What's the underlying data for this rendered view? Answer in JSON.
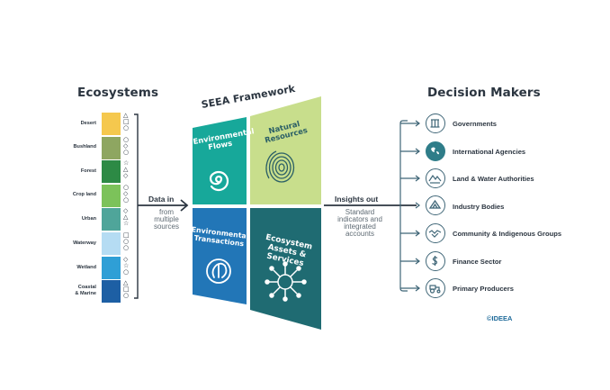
{
  "left": {
    "title": "Ecosystems",
    "items": [
      {
        "label": "Desert",
        "color": "#f5c84e"
      },
      {
        "label": "Bushland",
        "color": "#8ea661"
      },
      {
        "label": "Forest",
        "color": "#2d8a45"
      },
      {
        "label": "Crop land",
        "color": "#7cc25a"
      },
      {
        "label": "Urban",
        "color": "#4fa59a"
      },
      {
        "label": "Waterway",
        "color": "#b5dcf3"
      },
      {
        "label": "Wetland",
        "color": "#2f9fd6"
      },
      {
        "label": "Coastal\n& Marine",
        "color": "#1d5fa4"
      }
    ]
  },
  "flow_in": {
    "title": "Data in",
    "sub": "from\nmultiple\nsources"
  },
  "framework": {
    "title": "SEEA Framework",
    "quadrants": {
      "flows": {
        "label": "Environmental\nFlows",
        "color": "#17a89a",
        "icon": "spiral-icon"
      },
      "resources": {
        "label": "Natural\nResources",
        "color": "#c8de8c",
        "icon": "fingerprint-icon"
      },
      "transactions": {
        "label": "Environmental\nTransactions",
        "color": "#2276b7",
        "icon": "recycle-icon"
      },
      "assets": {
        "label": "Ecosystem\nAssets & Services",
        "color": "#1f6b72",
        "icon": "network-icon"
      }
    }
  },
  "flow_out": {
    "title": "Insights out",
    "sub": "Standard\nindicators and\nintegrated\naccounts"
  },
  "right": {
    "title": "Decision Makers",
    "items": [
      {
        "label": "Governments",
        "icon": "column-icon"
      },
      {
        "label": "International Agencies",
        "icon": "globe-icon"
      },
      {
        "label": "Land & Water Authorities",
        "icon": "landscape-icon"
      },
      {
        "label": "Industry Bodies",
        "icon": "triangle-icon"
      },
      {
        "label": "Community & Indigenous Groups",
        "icon": "handshake-icon"
      },
      {
        "label": "Finance Sector",
        "icon": "dollar-icon"
      },
      {
        "label": "Primary Producers",
        "icon": "tractor-icon"
      }
    ]
  },
  "credit": "©IDEEA"
}
